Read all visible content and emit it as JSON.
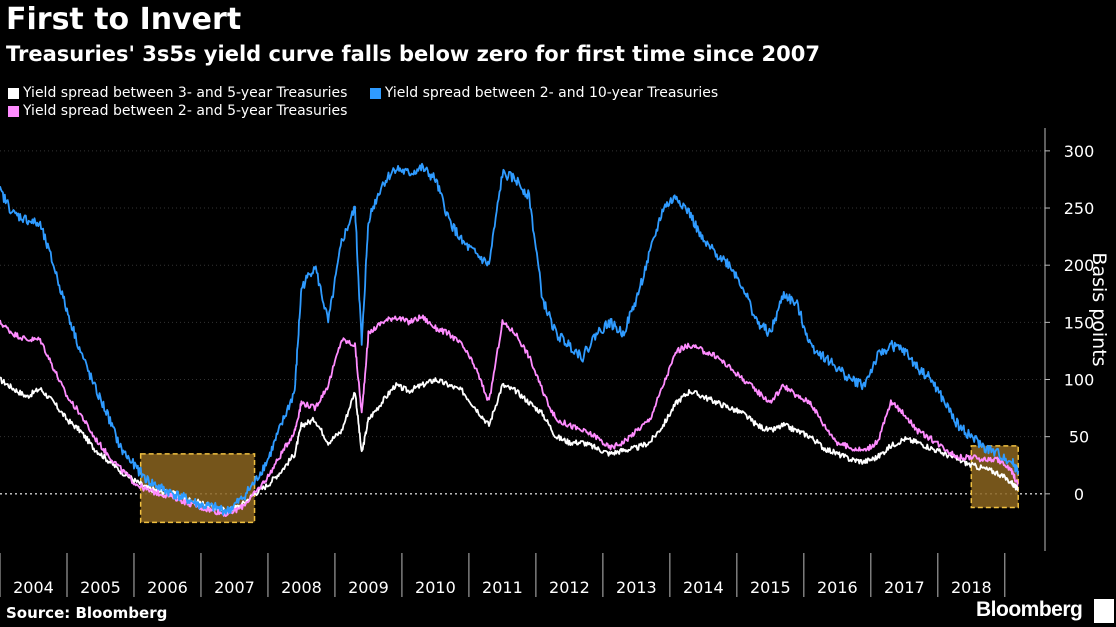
{
  "chart_data": {
    "type": "line",
    "title": "First to Invert",
    "subtitle": "Treasuries' 3s5s yield curve falls below zero for first time since 2007",
    "ylabel": "Basis points",
    "ylim": [
      -50,
      320
    ],
    "yticks": [
      0,
      50,
      100,
      150,
      200,
      250,
      300
    ],
    "xlim": [
      2003.5,
      2019.1
    ],
    "xtick_labels": [
      "2004",
      "2005",
      "2006",
      "2007",
      "2008",
      "2009",
      "2010",
      "2011",
      "2012",
      "2013",
      "2014",
      "2015",
      "2016",
      "2017",
      "2018"
    ],
    "zero_line": "dotted",
    "legend_position": "top-left",
    "highlight_boxes": [
      {
        "x": [
          2005.6,
          2007.3
        ],
        "y": [
          -25,
          35
        ]
      },
      {
        "x": [
          2018.0,
          2018.7
        ],
        "y": [
          -12,
          42
        ]
      }
    ],
    "series": [
      {
        "name": "Yield spread between 3- and 5-year Treasuries",
        "color": "#ffffff",
        "x": [
          2003.5,
          2003.7,
          2003.9,
          2004.1,
          2004.3,
          2004.5,
          2004.7,
          2004.9,
          2005.1,
          2005.3,
          2005.5,
          2005.7,
          2005.9,
          2006.1,
          2006.3,
          2006.5,
          2006.7,
          2006.9,
          2007.1,
          2007.3,
          2007.5,
          2007.7,
          2007.9,
          2008.0,
          2008.2,
          2008.4,
          2008.6,
          2008.8,
          2008.9,
          2009.0,
          2009.2,
          2009.4,
          2009.6,
          2009.8,
          2010.0,
          2010.2,
          2010.4,
          2010.6,
          2010.8,
          2011.0,
          2011.2,
          2011.4,
          2011.6,
          2011.8,
          2012.0,
          2012.2,
          2012.4,
          2012.6,
          2012.8,
          2013.0,
          2013.2,
          2013.4,
          2013.6,
          2013.8,
          2014.0,
          2014.2,
          2014.4,
          2014.6,
          2014.8,
          2015.0,
          2015.2,
          2015.4,
          2015.6,
          2015.8,
          2016.0,
          2016.2,
          2016.4,
          2016.6,
          2016.8,
          2017.0,
          2017.2,
          2017.4,
          2017.6,
          2017.8,
          2018.0,
          2018.2,
          2018.4,
          2018.6,
          2018.7
        ],
        "values": [
          100,
          92,
          85,
          92,
          80,
          65,
          55,
          40,
          30,
          20,
          12,
          5,
          2,
          0,
          -5,
          -8,
          -12,
          -15,
          -10,
          0,
          8,
          20,
          35,
          60,
          65,
          45,
          55,
          90,
          35,
          65,
          80,
          95,
          90,
          95,
          100,
          95,
          90,
          75,
          60,
          95,
          90,
          80,
          70,
          50,
          45,
          45,
          40,
          35,
          38,
          40,
          45,
          60,
          80,
          90,
          85,
          80,
          75,
          70,
          60,
          55,
          60,
          55,
          50,
          40,
          35,
          30,
          28,
          32,
          42,
          48,
          45,
          40,
          35,
          30,
          25,
          22,
          18,
          10,
          3
        ]
      },
      {
        "name": "Yield spread between 2- and 5-year Treasuries",
        "color": "#ff8cff",
        "x": [
          2003.5,
          2003.7,
          2003.9,
          2004.1,
          2004.3,
          2004.5,
          2004.7,
          2004.9,
          2005.1,
          2005.3,
          2005.5,
          2005.7,
          2005.9,
          2006.1,
          2006.3,
          2006.5,
          2006.7,
          2006.9,
          2007.1,
          2007.3,
          2007.5,
          2007.7,
          2007.9,
          2008.0,
          2008.2,
          2008.4,
          2008.6,
          2008.8,
          2008.9,
          2009.0,
          2009.2,
          2009.4,
          2009.6,
          2009.8,
          2010.0,
          2010.2,
          2010.4,
          2010.6,
          2010.8,
          2011.0,
          2011.2,
          2011.4,
          2011.6,
          2011.8,
          2012.0,
          2012.2,
          2012.4,
          2012.6,
          2012.8,
          2013.0,
          2013.2,
          2013.4,
          2013.6,
          2013.8,
          2014.0,
          2014.2,
          2014.4,
          2014.6,
          2014.8,
          2015.0,
          2015.2,
          2015.4,
          2015.6,
          2015.8,
          2016.0,
          2016.2,
          2016.4,
          2016.6,
          2016.8,
          2017.0,
          2017.2,
          2017.4,
          2017.6,
          2017.8,
          2018.0,
          2018.2,
          2018.4,
          2018.6,
          2018.7
        ],
        "values": [
          150,
          140,
          135,
          135,
          110,
          85,
          70,
          50,
          35,
          22,
          10,
          3,
          0,
          -3,
          -8,
          -12,
          -15,
          -18,
          -12,
          0,
          15,
          35,
          55,
          80,
          75,
          95,
          135,
          130,
          70,
          140,
          150,
          155,
          150,
          155,
          145,
          140,
          130,
          110,
          80,
          150,
          140,
          120,
          90,
          65,
          60,
          55,
          50,
          40,
          45,
          55,
          65,
          95,
          125,
          130,
          125,
          120,
          110,
          100,
          90,
          80,
          95,
          85,
          80,
          60,
          45,
          40,
          38,
          45,
          80,
          70,
          55,
          48,
          40,
          32,
          32,
          30,
          30,
          20,
          8
        ]
      },
      {
        "name": "Yield spread between 2- and 10-year Treasuries",
        "color": "#2f9bff",
        "x": [
          2003.5,
          2003.7,
          2003.9,
          2004.1,
          2004.3,
          2004.5,
          2004.7,
          2004.9,
          2005.1,
          2005.3,
          2005.5,
          2005.7,
          2005.9,
          2006.1,
          2006.3,
          2006.5,
          2006.7,
          2006.9,
          2007.1,
          2007.3,
          2007.5,
          2007.7,
          2007.9,
          2008.0,
          2008.2,
          2008.4,
          2008.6,
          2008.8,
          2008.9,
          2009.0,
          2009.2,
          2009.4,
          2009.6,
          2009.8,
          2010.0,
          2010.2,
          2010.4,
          2010.6,
          2010.8,
          2011.0,
          2011.2,
          2011.4,
          2011.6,
          2011.8,
          2012.0,
          2012.2,
          2012.4,
          2012.6,
          2012.8,
          2013.0,
          2013.2,
          2013.4,
          2013.6,
          2013.8,
          2014.0,
          2014.2,
          2014.4,
          2014.6,
          2014.8,
          2015.0,
          2015.2,
          2015.4,
          2015.6,
          2015.8,
          2016.0,
          2016.2,
          2016.4,
          2016.6,
          2016.8,
          2017.0,
          2017.2,
          2017.4,
          2017.6,
          2017.8,
          2018.0,
          2018.2,
          2018.4,
          2018.6,
          2018.7
        ],
        "values": [
          265,
          245,
          240,
          235,
          200,
          160,
          125,
          95,
          70,
          40,
          25,
          12,
          5,
          0,
          -5,
          -10,
          -12,
          -15,
          -5,
          10,
          30,
          60,
          90,
          180,
          200,
          150,
          220,
          250,
          130,
          240,
          270,
          285,
          280,
          285,
          275,
          240,
          220,
          210,
          200,
          280,
          275,
          260,
          170,
          140,
          130,
          120,
          140,
          150,
          140,
          170,
          210,
          250,
          260,
          245,
          220,
          210,
          200,
          180,
          150,
          140,
          175,
          165,
          130,
          120,
          110,
          100,
          95,
          120,
          130,
          125,
          110,
          100,
          80,
          60,
          50,
          40,
          35,
          28,
          20
        ]
      }
    ]
  }
}
